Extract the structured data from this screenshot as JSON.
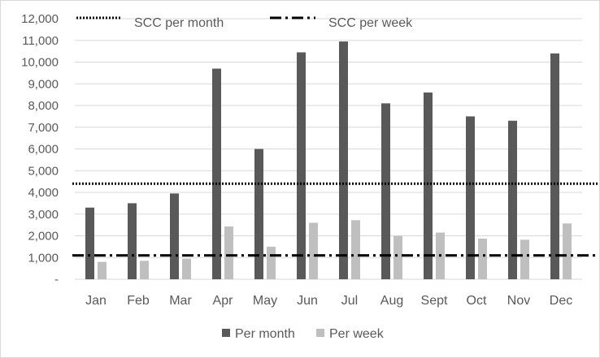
{
  "chart_data": {
    "type": "bar",
    "categories": [
      "Jan",
      "Feb",
      "Mar",
      "Apr",
      "May",
      "Jun",
      "Jul",
      "Aug",
      "Sept",
      "Oct",
      "Nov",
      "Dec"
    ],
    "series": [
      {
        "name": "Per month",
        "color": "#595959",
        "values": [
          3300,
          3500,
          3950,
          9700,
          6000,
          10450,
          10950,
          8100,
          8600,
          7500,
          7300,
          10400
        ]
      },
      {
        "name": "Per week",
        "color": "#bfbfbf",
        "values": [
          800,
          850,
          950,
          2430,
          1500,
          2600,
          2720,
          2000,
          2150,
          1870,
          1820,
          2570
        ]
      }
    ],
    "reference_lines": [
      {
        "name": "SCC per month",
        "value": 4400,
        "style": "dotted",
        "color": "#000000"
      },
      {
        "name": "SCC per week",
        "value": 1100,
        "style": "dash-dot",
        "color": "#000000"
      }
    ],
    "ylim": [
      0,
      12000
    ],
    "y_ticks": [
      {
        "value": 0,
        "label": "-"
      },
      {
        "value": 1000,
        "label": "1,000"
      },
      {
        "value": 2000,
        "label": "2,000"
      },
      {
        "value": 3000,
        "label": "3,000"
      },
      {
        "value": 4000,
        "label": "4,000"
      },
      {
        "value": 5000,
        "label": "5,000"
      },
      {
        "value": 6000,
        "label": "6,000"
      },
      {
        "value": 7000,
        "label": "7,000"
      },
      {
        "value": 8000,
        "label": "8,000"
      },
      {
        "value": 9000,
        "label": "9,000"
      },
      {
        "value": 10000,
        "label": "10,000"
      },
      {
        "value": 11000,
        "label": "11,000"
      },
      {
        "value": 12000,
        "label": "12,000"
      }
    ],
    "grid": true,
    "legend": "bottom",
    "gridline_color": "#d9d9d9",
    "text_color": "#595959"
  }
}
